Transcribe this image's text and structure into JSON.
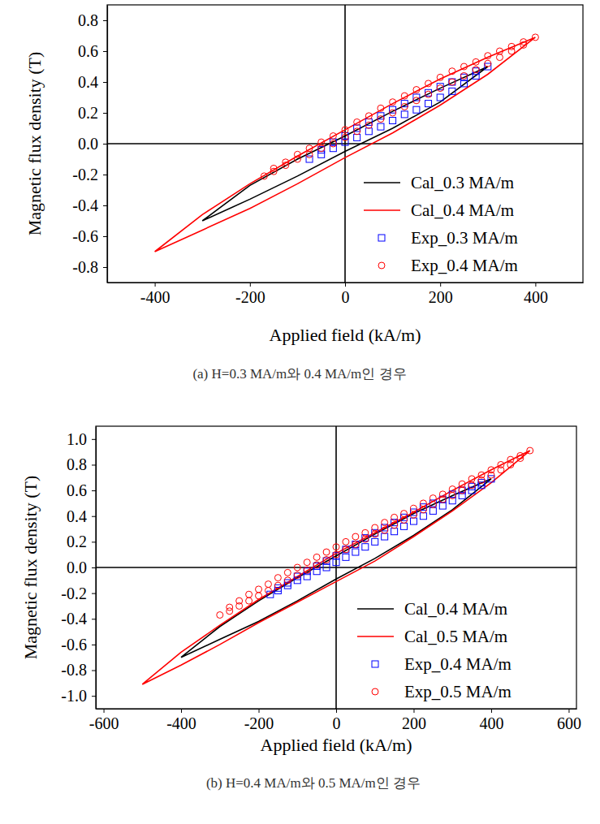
{
  "chart_data": [
    {
      "type": "line",
      "caption": "(a) H=0.3 MA/m와 0.4 MA/m인 경우",
      "x_label": "Applied field (kA/m)",
      "y_label": "Magnetic flux density (T)",
      "xlim": [
        -500,
        500
      ],
      "xticks": [
        -400,
        -200,
        0,
        200,
        400
      ],
      "ylim": [
        -0.9,
        0.9
      ],
      "yticks": [
        -0.8,
        -0.6,
        -0.4,
        -0.2,
        {
          "value": 0,
          "label": "0.0"
        },
        0.2,
        0.4,
        0.6,
        0.8
      ],
      "grid": false,
      "legend": "lower right",
      "series": [
        {
          "name": "Cal_0.3 MA/m",
          "type": "line",
          "line_style": "solid",
          "color": "#000000",
          "x": [
            300,
            200,
            100,
            0,
            -100,
            -200,
            -300,
            -200,
            -100,
            0,
            100,
            200,
            300
          ],
          "values": [
            0.5,
            0.36,
            0.21,
            0.05,
            -0.1,
            -0.27,
            -0.5,
            -0.36,
            -0.21,
            -0.05,
            0.1,
            0.27,
            0.5
          ]
        },
        {
          "name": "Cal_0.4 MA/m",
          "type": "line",
          "line_style": "solid",
          "color": "#ff0000",
          "x": [
            400,
            300,
            200,
            100,
            0,
            -100,
            -200,
            -300,
            -400,
            -300,
            -200,
            -100,
            0,
            100,
            200,
            300,
            400
          ],
          "values": [
            0.69,
            0.56,
            0.42,
            0.26,
            0.09,
            -0.08,
            -0.26,
            -0.46,
            -0.7,
            -0.56,
            -0.42,
            -0.26,
            -0.09,
            0.07,
            0.25,
            0.45,
            0.69
          ]
        },
        {
          "name": "Exp_0.3 MA/m",
          "type": "scatter",
          "marker": "square",
          "color": "#0000ff",
          "x": [
            300,
            275,
            250,
            225,
            200,
            175,
            150,
            125,
            100,
            75,
            50,
            25,
            0,
            -25,
            -50,
            -75,
            -50,
            -25,
            0,
            25,
            50,
            75,
            100,
            125,
            150,
            175,
            200,
            225,
            250,
            275
          ],
          "values": [
            0.5,
            0.47,
            0.43,
            0.4,
            0.37,
            0.33,
            0.3,
            0.26,
            0.22,
            0.18,
            0.14,
            0.1,
            0.05,
            0.01,
            -0.04,
            -0.1,
            -0.07,
            -0.03,
            0.01,
            0.04,
            0.08,
            0.11,
            0.15,
            0.19,
            0.22,
            0.26,
            0.3,
            0.34,
            0.39,
            0.44
          ]
        },
        {
          "name": "Exp_0.4 MA/m",
          "type": "scatter",
          "marker": "circle",
          "color": "#ff0000",
          "x": [
            400,
            375,
            350,
            325,
            300,
            275,
            250,
            225,
            200,
            175,
            150,
            125,
            100,
            75,
            50,
            25,
            0,
            -25,
            -50,
            -75,
            -100,
            -125,
            -150,
            -170,
            -150,
            -125,
            -100,
            -75,
            -50,
            -25,
            0,
            25,
            50,
            75,
            100,
            125,
            150,
            175,
            200,
            225,
            250,
            275,
            300,
            325,
            350,
            375
          ],
          "values": [
            0.69,
            0.66,
            0.63,
            0.6,
            0.57,
            0.53,
            0.5,
            0.47,
            0.43,
            0.39,
            0.35,
            0.31,
            0.27,
            0.23,
            0.18,
            0.14,
            0.09,
            0.05,
            0.01,
            -0.03,
            -0.07,
            -0.12,
            -0.16,
            -0.21,
            -0.18,
            -0.14,
            -0.1,
            -0.07,
            -0.03,
            0,
            0.04,
            0.08,
            0.12,
            0.16,
            0.2,
            0.24,
            0.28,
            0.32,
            0.36,
            0.4,
            0.44,
            0.48,
            0.52,
            0.56,
            0.6,
            0.64
          ]
        }
      ]
    },
    {
      "type": "line",
      "caption": "(b) H=0.4 MA/m와 0.5 MA/m인 경우",
      "x_label": "Applied field (kA/m)",
      "y_label": "Magnetic flux density (T)",
      "xlim": [
        -620,
        620
      ],
      "xticks": [
        -600,
        -400,
        -200,
        0,
        200,
        400,
        600
      ],
      "ylim": [
        -1.1,
        1.1
      ],
      "yticks": [
        {
          "value": -1,
          "label": "-1.0"
        },
        -0.8,
        -0.6,
        -0.4,
        -0.2,
        {
          "value": 0,
          "label": "0.0"
        },
        0.2,
        0.4,
        0.6,
        0.8,
        {
          "value": 1,
          "label": "1.0"
        }
      ],
      "grid": false,
      "legend": "lower right",
      "series": [
        {
          "name": "Cal_0.4 MA/m",
          "type": "line",
          "line_style": "solid",
          "color": "#000000",
          "x": [
            400,
            300,
            200,
            100,
            0,
            -100,
            -200,
            -300,
            -400,
            -300,
            -200,
            -100,
            0,
            100,
            200,
            300,
            400
          ],
          "values": [
            0.69,
            0.56,
            0.42,
            0.26,
            0.09,
            -0.08,
            -0.26,
            -0.46,
            -0.7,
            -0.56,
            -0.42,
            -0.26,
            -0.09,
            0.07,
            0.25,
            0.45,
            0.69
          ]
        },
        {
          "name": "Cal_0.5 MA/m",
          "type": "line",
          "line_style": "solid",
          "color": "#ff0000",
          "x": [
            500,
            400,
            300,
            200,
            100,
            0,
            -100,
            -200,
            -300,
            -400,
            -500,
            -400,
            -300,
            -200,
            -100,
            0,
            100,
            200,
            300,
            400,
            500
          ],
          "values": [
            0.91,
            0.76,
            0.6,
            0.43,
            0.27,
            0.11,
            -0.07,
            -0.25,
            -0.45,
            -0.66,
            -0.91,
            -0.76,
            -0.6,
            -0.43,
            -0.27,
            -0.11,
            0.05,
            0.24,
            0.44,
            0.66,
            0.91
          ]
        },
        {
          "name": "Exp_0.4 MA/m",
          "type": "scatter",
          "marker": "square",
          "color": "#0000ff",
          "x": [
            400,
            375,
            350,
            325,
            300,
            275,
            250,
            225,
            200,
            175,
            150,
            125,
            100,
            75,
            50,
            25,
            0,
            -25,
            -50,
            -75,
            -100,
            -125,
            -150,
            -170,
            -150,
            -125,
            -100,
            -75,
            -50,
            -25,
            0,
            25,
            50,
            75,
            100,
            125,
            150,
            175,
            200,
            225,
            250,
            275,
            300,
            325,
            350,
            375
          ],
          "values": [
            0.69,
            0.66,
            0.63,
            0.6,
            0.57,
            0.53,
            0.5,
            0.47,
            0.43,
            0.39,
            0.35,
            0.31,
            0.27,
            0.23,
            0.18,
            0.14,
            0.09,
            0.05,
            0.01,
            -0.03,
            -0.07,
            -0.12,
            -0.16,
            -0.21,
            -0.18,
            -0.14,
            -0.1,
            -0.07,
            -0.03,
            0,
            0.04,
            0.08,
            0.12,
            0.16,
            0.2,
            0.24,
            0.28,
            0.32,
            0.36,
            0.4,
            0.44,
            0.48,
            0.52,
            0.56,
            0.6,
            0.64
          ]
        },
        {
          "name": "Exp_0.5 MA/m",
          "type": "scatter",
          "marker": "circle",
          "color": "#ff0000",
          "x": [
            500,
            475,
            450,
            425,
            400,
            375,
            350,
            325,
            300,
            275,
            250,
            225,
            200,
            175,
            150,
            125,
            100,
            75,
            50,
            25,
            0,
            -25,
            -50,
            -75,
            -100,
            -125,
            -150,
            -175,
            -200,
            -225,
            -250,
            -275,
            -300,
            -275,
            -250,
            -225,
            -200,
            -175,
            -150,
            -125,
            -100,
            -75,
            -50,
            -25,
            0,
            25,
            50,
            75,
            100,
            125,
            150,
            175,
            200,
            225,
            250,
            275,
            300,
            325,
            350,
            375,
            400,
            425,
            450,
            475
          ],
          "values": [
            0.91,
            0.87,
            0.84,
            0.8,
            0.76,
            0.72,
            0.69,
            0.65,
            0.61,
            0.57,
            0.54,
            0.5,
            0.46,
            0.42,
            0.39,
            0.35,
            0.31,
            0.27,
            0.24,
            0.2,
            0.16,
            0.12,
            0.08,
            0.04,
            0,
            -0.04,
            -0.08,
            -0.13,
            -0.17,
            -0.21,
            -0.26,
            -0.31,
            -0.37,
            -0.34,
            -0.3,
            -0.26,
            -0.22,
            -0.18,
            -0.14,
            -0.1,
            -0.06,
            -0.02,
            0.02,
            0.06,
            0.1,
            0.14,
            0.18,
            0.22,
            0.26,
            0.29,
            0.33,
            0.37,
            0.41,
            0.45,
            0.49,
            0.53,
            0.56,
            0.6,
            0.64,
            0.68,
            0.72,
            0.76,
            0.8,
            0.85
          ]
        }
      ]
    }
  ]
}
